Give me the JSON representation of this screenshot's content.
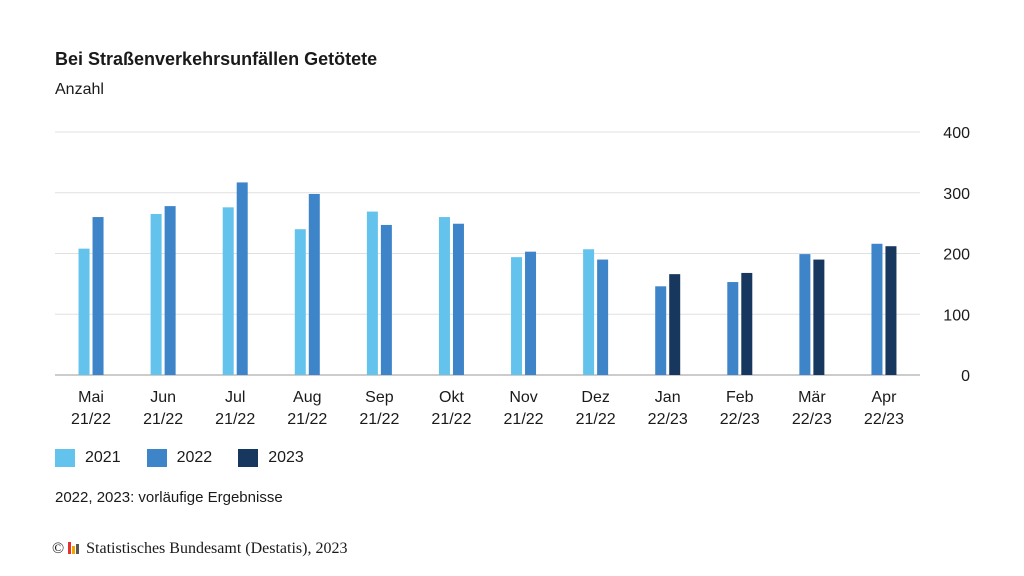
{
  "title": "Bei Straßenverkehrsunfällen Getötete",
  "subtitle": "Anzahl",
  "note": "2022, 2023: vorläufige Ergebnisse",
  "source": {
    "copyright_symbol": "©",
    "text": "Statistisches Bundesamt (Destatis), 2023"
  },
  "colors": {
    "2021": "#64c3ec",
    "2022": "#3d84c9",
    "2023": "#17375e",
    "grid": "#e0e0e0",
    "axis": "#999999",
    "logo": [
      "#e4322b",
      "#f0a500",
      "#555555"
    ]
  },
  "chart_data": {
    "type": "bar",
    "title": "Bei Straßenverkehrsunfällen Getötete",
    "ylabel": "Anzahl",
    "ylim": [
      0,
      400
    ],
    "yticks": [
      0,
      100,
      200,
      300,
      400
    ],
    "y_axis_side": "right",
    "grid": true,
    "legend_position": "bottom-left",
    "categories": [
      [
        "Mai",
        "21/22"
      ],
      [
        "Jun",
        "21/22"
      ],
      [
        "Jul",
        "21/22"
      ],
      [
        "Aug",
        "21/22"
      ],
      [
        "Sep",
        "21/22"
      ],
      [
        "Okt",
        "21/22"
      ],
      [
        "Nov",
        "21/22"
      ],
      [
        "Dez",
        "21/22"
      ],
      [
        "Jan",
        "22/23"
      ],
      [
        "Feb",
        "22/23"
      ],
      [
        "Mär",
        "22/23"
      ],
      [
        "Apr",
        "22/23"
      ]
    ],
    "series": [
      {
        "name": "2021",
        "values": [
          208,
          265,
          276,
          240,
          269,
          260,
          194,
          207,
          null,
          null,
          null,
          null
        ]
      },
      {
        "name": "2022",
        "values": [
          260,
          278,
          317,
          298,
          247,
          249,
          203,
          190,
          146,
          153,
          199,
          216
        ]
      },
      {
        "name": "2023",
        "values": [
          null,
          null,
          null,
          null,
          null,
          null,
          null,
          null,
          166,
          168,
          190,
          212
        ]
      }
    ]
  }
}
